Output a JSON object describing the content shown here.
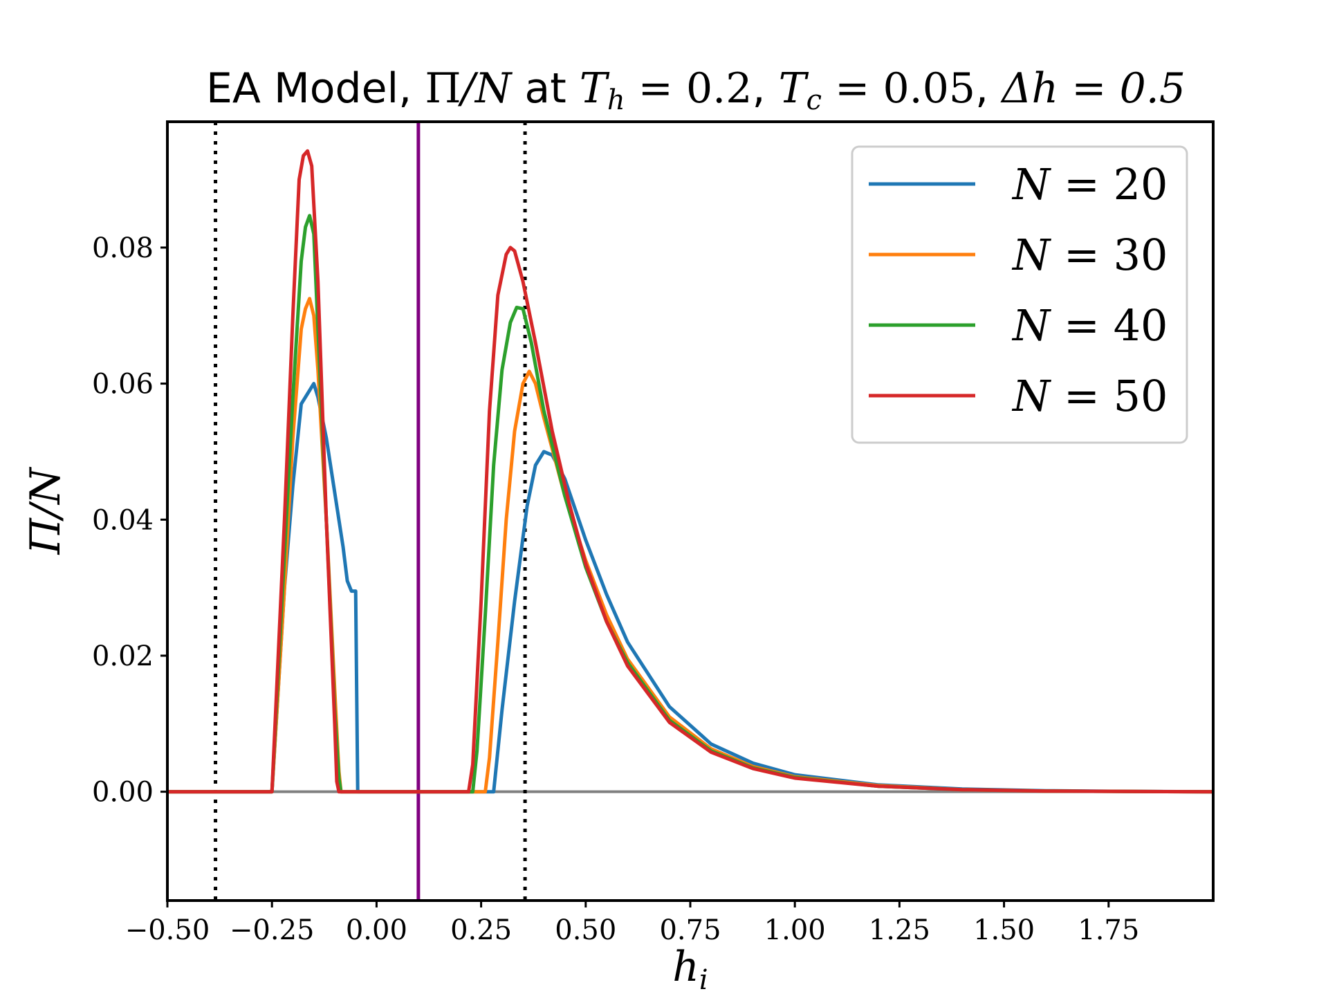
{
  "chart_data": {
    "type": "line",
    "title": {
      "prefix": "EA Model, ",
      "pi": "Π",
      "slash_n": "/N",
      "at": " at ",
      "th_base": "T",
      "th_sub": "h",
      "th_val": " = 0.2",
      "sep1": ", ",
      "tc_base": "T",
      "tc_sub": "c",
      "tc_val": " = 0.05",
      "sep2": ", ",
      "dh": "Δh = 0.5"
    },
    "xlabel": {
      "base": "h",
      "sub": "i"
    },
    "ylabel": "Π/N",
    "xlim": [
      -0.5,
      2.0
    ],
    "ylim": [
      -0.016,
      0.0985
    ],
    "x_ticks": [
      {
        "value": -0.5,
        "label": "−0.50"
      },
      {
        "value": -0.25,
        "label": "−0.25"
      },
      {
        "value": 0.0,
        "label": "0.00"
      },
      {
        "value": 0.25,
        "label": "0.25"
      },
      {
        "value": 0.5,
        "label": "0.50"
      },
      {
        "value": 0.75,
        "label": "0.75"
      },
      {
        "value": 1.0,
        "label": "1.00"
      },
      {
        "value": 1.25,
        "label": "1.25"
      },
      {
        "value": 1.5,
        "label": "1.50"
      },
      {
        "value": 1.75,
        "label": "1.75"
      }
    ],
    "y_ticks": [
      {
        "value": 0.0,
        "label": "0.00"
      },
      {
        "value": 0.02,
        "label": "0.02"
      },
      {
        "value": 0.04,
        "label": "0.04"
      },
      {
        "value": 0.06,
        "label": "0.06"
      },
      {
        "value": 0.08,
        "label": "0.08"
      }
    ],
    "reference_lines": {
      "zero_line": {
        "y": 0.0,
        "color": "#808080"
      },
      "solid_vertical": {
        "x": 0.1,
        "color": "#800080"
      },
      "dotted_verticals": [
        {
          "x": -0.385,
          "color": "#000000"
        },
        {
          "x": 0.355,
          "color": "#000000"
        }
      ]
    },
    "legend": {
      "position": "top-right",
      "entries": [
        {
          "series": 0,
          "label": "N = 20"
        },
        {
          "series": 1,
          "label": "N = 30"
        },
        {
          "series": 2,
          "label": "N = 40"
        },
        {
          "series": 3,
          "label": "N = 50"
        }
      ]
    },
    "series": [
      {
        "name": "N = 20",
        "color": "#1f77b4",
        "points": [
          [
            -0.5,
            0
          ],
          [
            -0.25,
            0
          ],
          [
            -0.24,
            0.01
          ],
          [
            -0.22,
            0.03
          ],
          [
            -0.2,
            0.045
          ],
          [
            -0.18,
            0.057
          ],
          [
            -0.16,
            0.059
          ],
          [
            -0.15,
            0.06
          ],
          [
            -0.14,
            0.058
          ],
          [
            -0.12,
            0.052
          ],
          [
            -0.1,
            0.044
          ],
          [
            -0.08,
            0.036
          ],
          [
            -0.07,
            0.031
          ],
          [
            -0.06,
            0.0295
          ],
          [
            -0.05,
            0.0295
          ],
          [
            -0.045,
            0
          ],
          [
            0.28,
            0
          ],
          [
            0.3,
            0.012
          ],
          [
            0.33,
            0.028
          ],
          [
            0.36,
            0.042
          ],
          [
            0.38,
            0.048
          ],
          [
            0.4,
            0.05
          ],
          [
            0.42,
            0.0495
          ],
          [
            0.45,
            0.046
          ],
          [
            0.5,
            0.037
          ],
          [
            0.55,
            0.029
          ],
          [
            0.6,
            0.022
          ],
          [
            0.7,
            0.0125
          ],
          [
            0.8,
            0.007
          ],
          [
            0.9,
            0.0042
          ],
          [
            1.0,
            0.0025
          ],
          [
            1.2,
            0.001
          ],
          [
            1.4,
            0.0004
          ],
          [
            1.6,
            0.00015
          ],
          [
            1.8,
            5e-05
          ],
          [
            2.0,
            0
          ]
        ]
      },
      {
        "name": "N = 30",
        "color": "#ff7f0e",
        "points": [
          [
            -0.5,
            0
          ],
          [
            -0.25,
            0
          ],
          [
            -0.22,
            0.03
          ],
          [
            -0.2,
            0.052
          ],
          [
            -0.18,
            0.068
          ],
          [
            -0.17,
            0.071
          ],
          [
            -0.16,
            0.0725
          ],
          [
            -0.15,
            0.07
          ],
          [
            -0.14,
            0.062
          ],
          [
            -0.12,
            0.04
          ],
          [
            -0.1,
            0.015
          ],
          [
            -0.09,
            0.003
          ],
          [
            -0.085,
            0
          ],
          [
            0.26,
            0
          ],
          [
            0.27,
            0.005
          ],
          [
            0.29,
            0.022
          ],
          [
            0.31,
            0.04
          ],
          [
            0.33,
            0.053
          ],
          [
            0.35,
            0.06
          ],
          [
            0.365,
            0.0618
          ],
          [
            0.38,
            0.06
          ],
          [
            0.4,
            0.055
          ],
          [
            0.45,
            0.0435
          ],
          [
            0.5,
            0.034
          ],
          [
            0.55,
            0.026
          ],
          [
            0.6,
            0.0195
          ],
          [
            0.7,
            0.011
          ],
          [
            0.8,
            0.0063
          ],
          [
            0.9,
            0.0037
          ],
          [
            1.0,
            0.0022
          ],
          [
            1.2,
            0.0009
          ],
          [
            1.4,
            0.0003
          ],
          [
            1.6,
            0.0001
          ],
          [
            1.8,
            4e-05
          ],
          [
            2.0,
            0
          ]
        ]
      },
      {
        "name": "N = 40",
        "color": "#2ca02c",
        "points": [
          [
            -0.5,
            0
          ],
          [
            -0.25,
            0
          ],
          [
            -0.22,
            0.035
          ],
          [
            -0.2,
            0.058
          ],
          [
            -0.18,
            0.078
          ],
          [
            -0.17,
            0.083
          ],
          [
            -0.16,
            0.0847
          ],
          [
            -0.15,
            0.082
          ],
          [
            -0.14,
            0.068
          ],
          [
            -0.12,
            0.04
          ],
          [
            -0.1,
            0.012
          ],
          [
            -0.09,
            0.002
          ],
          [
            -0.085,
            0
          ],
          [
            0.23,
            0
          ],
          [
            0.24,
            0.006
          ],
          [
            0.26,
            0.026
          ],
          [
            0.28,
            0.048
          ],
          [
            0.3,
            0.062
          ],
          [
            0.32,
            0.069
          ],
          [
            0.335,
            0.0712
          ],
          [
            0.35,
            0.071
          ],
          [
            0.37,
            0.066
          ],
          [
            0.4,
            0.056
          ],
          [
            0.45,
            0.0435
          ],
          [
            0.5,
            0.033
          ],
          [
            0.55,
            0.025
          ],
          [
            0.6,
            0.019
          ],
          [
            0.7,
            0.0105
          ],
          [
            0.8,
            0.006
          ],
          [
            0.9,
            0.0035
          ],
          [
            1.0,
            0.0021
          ],
          [
            1.2,
            0.0008
          ],
          [
            1.4,
            0.0003
          ],
          [
            1.6,
            0.0001
          ],
          [
            1.8,
            4e-05
          ],
          [
            2.0,
            0
          ]
        ]
      },
      {
        "name": "N = 50",
        "color": "#d62728",
        "points": [
          [
            -0.5,
            0
          ],
          [
            -0.25,
            0
          ],
          [
            -0.22,
            0.04
          ],
          [
            -0.2,
            0.07
          ],
          [
            -0.185,
            0.09
          ],
          [
            -0.175,
            0.0935
          ],
          [
            -0.165,
            0.0942
          ],
          [
            -0.155,
            0.092
          ],
          [
            -0.14,
            0.075
          ],
          [
            -0.12,
            0.04
          ],
          [
            -0.1,
            0.01
          ],
          [
            -0.095,
            0.0015
          ],
          [
            -0.09,
            0
          ],
          [
            0.22,
            0
          ],
          [
            0.23,
            0.004
          ],
          [
            0.25,
            0.028
          ],
          [
            0.27,
            0.056
          ],
          [
            0.29,
            0.073
          ],
          [
            0.31,
            0.079
          ],
          [
            0.32,
            0.08
          ],
          [
            0.33,
            0.0795
          ],
          [
            0.35,
            0.075
          ],
          [
            0.38,
            0.066
          ],
          [
            0.42,
            0.053
          ],
          [
            0.46,
            0.0425
          ],
          [
            0.5,
            0.0335
          ],
          [
            0.55,
            0.025
          ],
          [
            0.6,
            0.0185
          ],
          [
            0.7,
            0.0102
          ],
          [
            0.8,
            0.0058
          ],
          [
            0.9,
            0.0034
          ],
          [
            1.0,
            0.002
          ],
          [
            1.2,
            0.0008
          ],
          [
            1.4,
            0.0003
          ],
          [
            1.6,
            0.0001
          ],
          [
            1.8,
            4e-05
          ],
          [
            2.0,
            0
          ]
        ]
      }
    ]
  }
}
